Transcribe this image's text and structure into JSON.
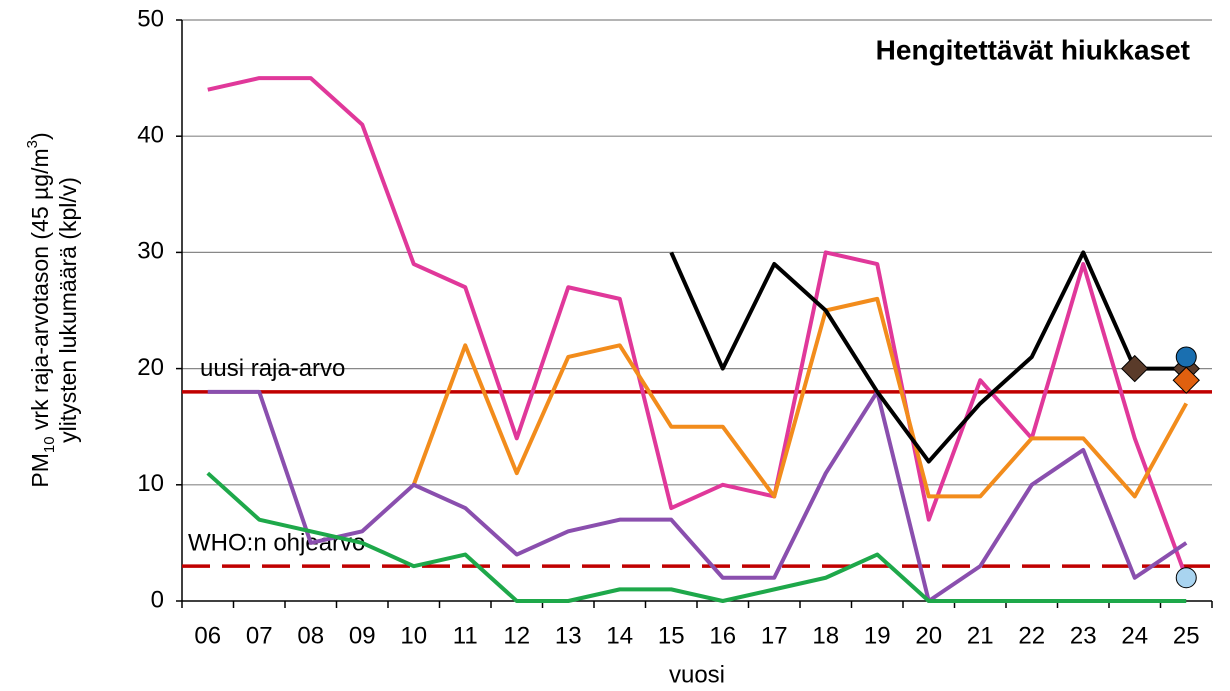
{
  "chart_data": {
    "type": "line",
    "title": "Hengitettävät hiukkaset",
    "xlabel": "vuosi",
    "ylabel": {
      "line1": [
        "PM",
        "10",
        " vrk raja-arvotason (45 µg/m",
        "3",
        ")"
      ],
      "line2": "ylitysten lukumäärä (kpl/v)"
    },
    "categories": [
      "06",
      "07",
      "08",
      "09",
      "10",
      "11",
      "12",
      "13",
      "14",
      "15",
      "16",
      "17",
      "18",
      "19",
      "20",
      "21",
      "22",
      "23",
      "24",
      "25"
    ],
    "ylim": [
      0,
      50
    ],
    "yticks": [
      0,
      10,
      20,
      30,
      40,
      50
    ],
    "grid": true,
    "series": [
      {
        "color": "#e0389a",
        "values": [
          44,
          45,
          45,
          41,
          29,
          27,
          14,
          27,
          26,
          8,
          10,
          9,
          30,
          29,
          7,
          19,
          14,
          29,
          14,
          2
        ]
      },
      {
        "color": "#f28c1c",
        "values": [
          null,
          null,
          null,
          null,
          10,
          22,
          11,
          21,
          22,
          15,
          15,
          9,
          25,
          26,
          9,
          9,
          14,
          14,
          9,
          17
        ]
      },
      {
        "color": "#8a4fae",
        "values": [
          18,
          18,
          5,
          6,
          10,
          8,
          4,
          6,
          7,
          7,
          2,
          2,
          11,
          18,
          0,
          3,
          10,
          13,
          2,
          5
        ]
      },
      {
        "color": "#1ea84a",
        "values": [
          11,
          7,
          6,
          5,
          3,
          4,
          0,
          0,
          1,
          1,
          0,
          1,
          2,
          4,
          0,
          0,
          0,
          0,
          0,
          0
        ]
      },
      {
        "color": "#000000",
        "values": [
          null,
          null,
          null,
          null,
          null,
          null,
          null,
          null,
          null,
          30,
          20,
          29,
          25,
          18,
          12,
          17,
          21,
          30,
          20,
          20
        ]
      },
      {
        "color": "#5a3b2a",
        "marker": "diamond",
        "values": [
          null,
          null,
          null,
          null,
          null,
          null,
          null,
          null,
          null,
          null,
          null,
          null,
          null,
          null,
          null,
          null,
          null,
          null,
          20,
          20
        ]
      },
      {
        "color": "#1a6fb0",
        "marker": "circle",
        "values": [
          null,
          null,
          null,
          null,
          null,
          null,
          null,
          null,
          null,
          null,
          null,
          null,
          null,
          null,
          null,
          null,
          null,
          null,
          null,
          21
        ]
      },
      {
        "color": "#e0600f",
        "marker": "diamond",
        "values": [
          null,
          null,
          null,
          null,
          null,
          null,
          null,
          null,
          null,
          null,
          null,
          null,
          null,
          null,
          null,
          null,
          null,
          null,
          null,
          19
        ]
      },
      {
        "color": "#a9d4f0",
        "marker": "circle",
        "values": [
          null,
          null,
          null,
          null,
          null,
          null,
          null,
          null,
          null,
          null,
          null,
          null,
          null,
          null,
          null,
          null,
          null,
          null,
          null,
          2
        ]
      }
    ],
    "reference_lines": [
      {
        "label": "uusi raja-arvo",
        "value": 18,
        "color": "#c00000",
        "dashed": false
      },
      {
        "label": "WHO:n ohjearvo",
        "value": 3,
        "color": "#c00000",
        "dashed": true
      }
    ]
  }
}
